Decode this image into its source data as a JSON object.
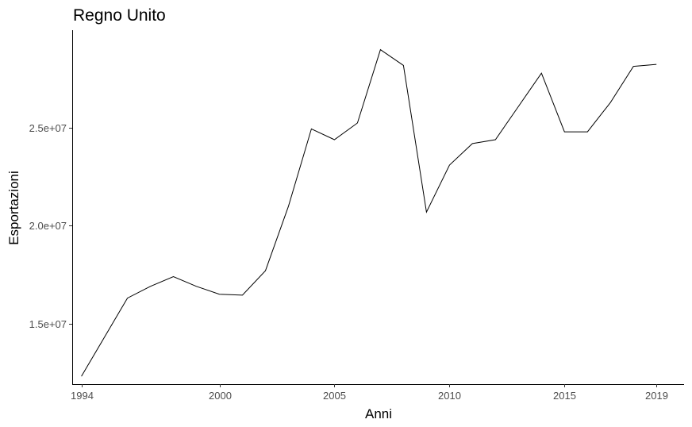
{
  "chart_data": {
    "type": "line",
    "title": "Regno Unito",
    "xlabel": "Anni",
    "ylabel": "Esportazioni",
    "x_ticks": [
      1994,
      2000,
      2005,
      2010,
      2015,
      2019
    ],
    "y_ticks": [
      15000000,
      20000000,
      25000000
    ],
    "y_tick_labels": [
      "1.5e+07",
      "2.0e+07",
      "2.5e+07"
    ],
    "xlim": [
      1993.6,
      2020.2
    ],
    "ylim": [
      11900000,
      30000000
    ],
    "grid": false,
    "legend": "none",
    "series": [
      {
        "color": "#000000",
        "x": [
          1994,
          1995,
          1996,
          1997,
          1998,
          1999,
          2000,
          2001,
          2002,
          2003,
          2004,
          2005,
          2006,
          2007,
          2008,
          2009,
          2010,
          2011,
          2012,
          2013,
          2014,
          2015,
          2016,
          2017,
          2018,
          2019
        ],
        "y": [
          12300000,
          14300000,
          16300000,
          16900000,
          17400000,
          16900000,
          16500000,
          16450000,
          17700000,
          21000000,
          24950000,
          24400000,
          25250000,
          29000000,
          28200000,
          20700000,
          23100000,
          24200000,
          24400000,
          26100000,
          27800000,
          24800000,
          24800000,
          26300000,
          28150000,
          28250000
        ]
      }
    ]
  }
}
